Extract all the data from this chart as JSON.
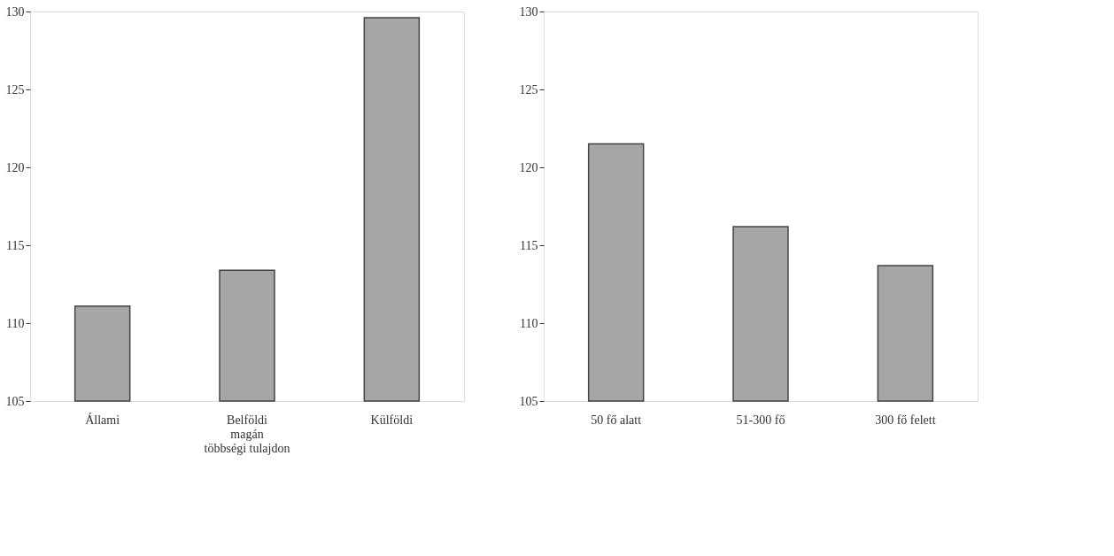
{
  "chart_data": [
    {
      "type": "bar",
      "categories": [
        "Állami",
        "Belföldi\nmagán\n\ntöbbségi tulajdon",
        "Külföldi"
      ],
      "values": [
        111.1,
        113.4,
        129.6
      ],
      "color": "#a6a6a6",
      "ylim": [
        105,
        130
      ],
      "yticks": [
        105,
        110,
        115,
        120,
        125,
        130
      ],
      "grid": false
    },
    {
      "type": "bar",
      "categories": [
        "50 fő alatt",
        "51-300 fő",
        "300 fő felett"
      ],
      "values": [
        121.5,
        116.2,
        113.7
      ],
      "color": "#a6a6a6",
      "ylim": [
        105,
        130
      ],
      "yticks": [
        105,
        110,
        115,
        120,
        125,
        130
      ],
      "grid": false
    }
  ]
}
